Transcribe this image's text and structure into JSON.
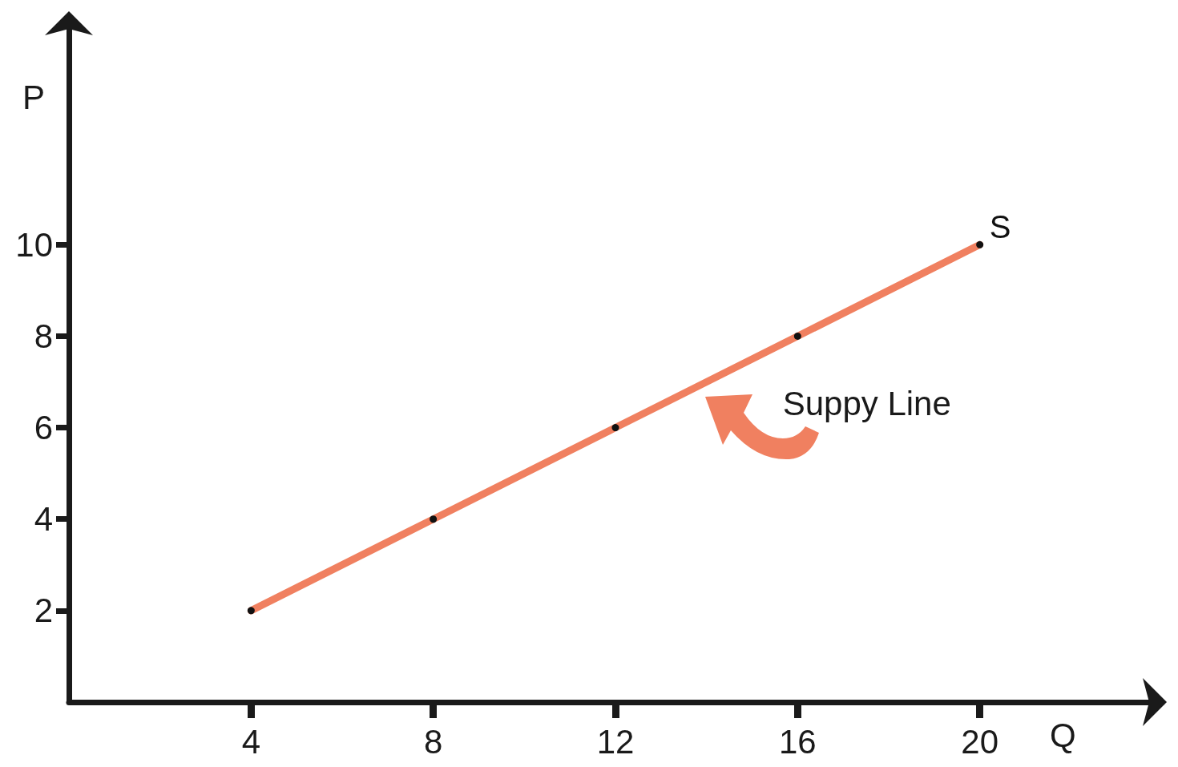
{
  "chart_data": {
    "type": "line",
    "xlabel": "Q",
    "ylabel": "P",
    "x": [
      4,
      8,
      12,
      16,
      20
    ],
    "series": [
      {
        "name": "S",
        "color": "#f08060",
        "values": [
          2,
          4,
          6,
          8,
          10
        ]
      }
    ],
    "xlim": [
      0,
      24
    ],
    "ylim": [
      0,
      15
    ],
    "xticks": [
      4,
      8,
      12,
      16,
      20
    ],
    "yticks": [
      2,
      4,
      6,
      8,
      10
    ],
    "marker": "circle",
    "grid": false,
    "legend": false,
    "annotations": [
      {
        "text": "Suppy Line",
        "x": 14,
        "y": 7
      }
    ]
  }
}
